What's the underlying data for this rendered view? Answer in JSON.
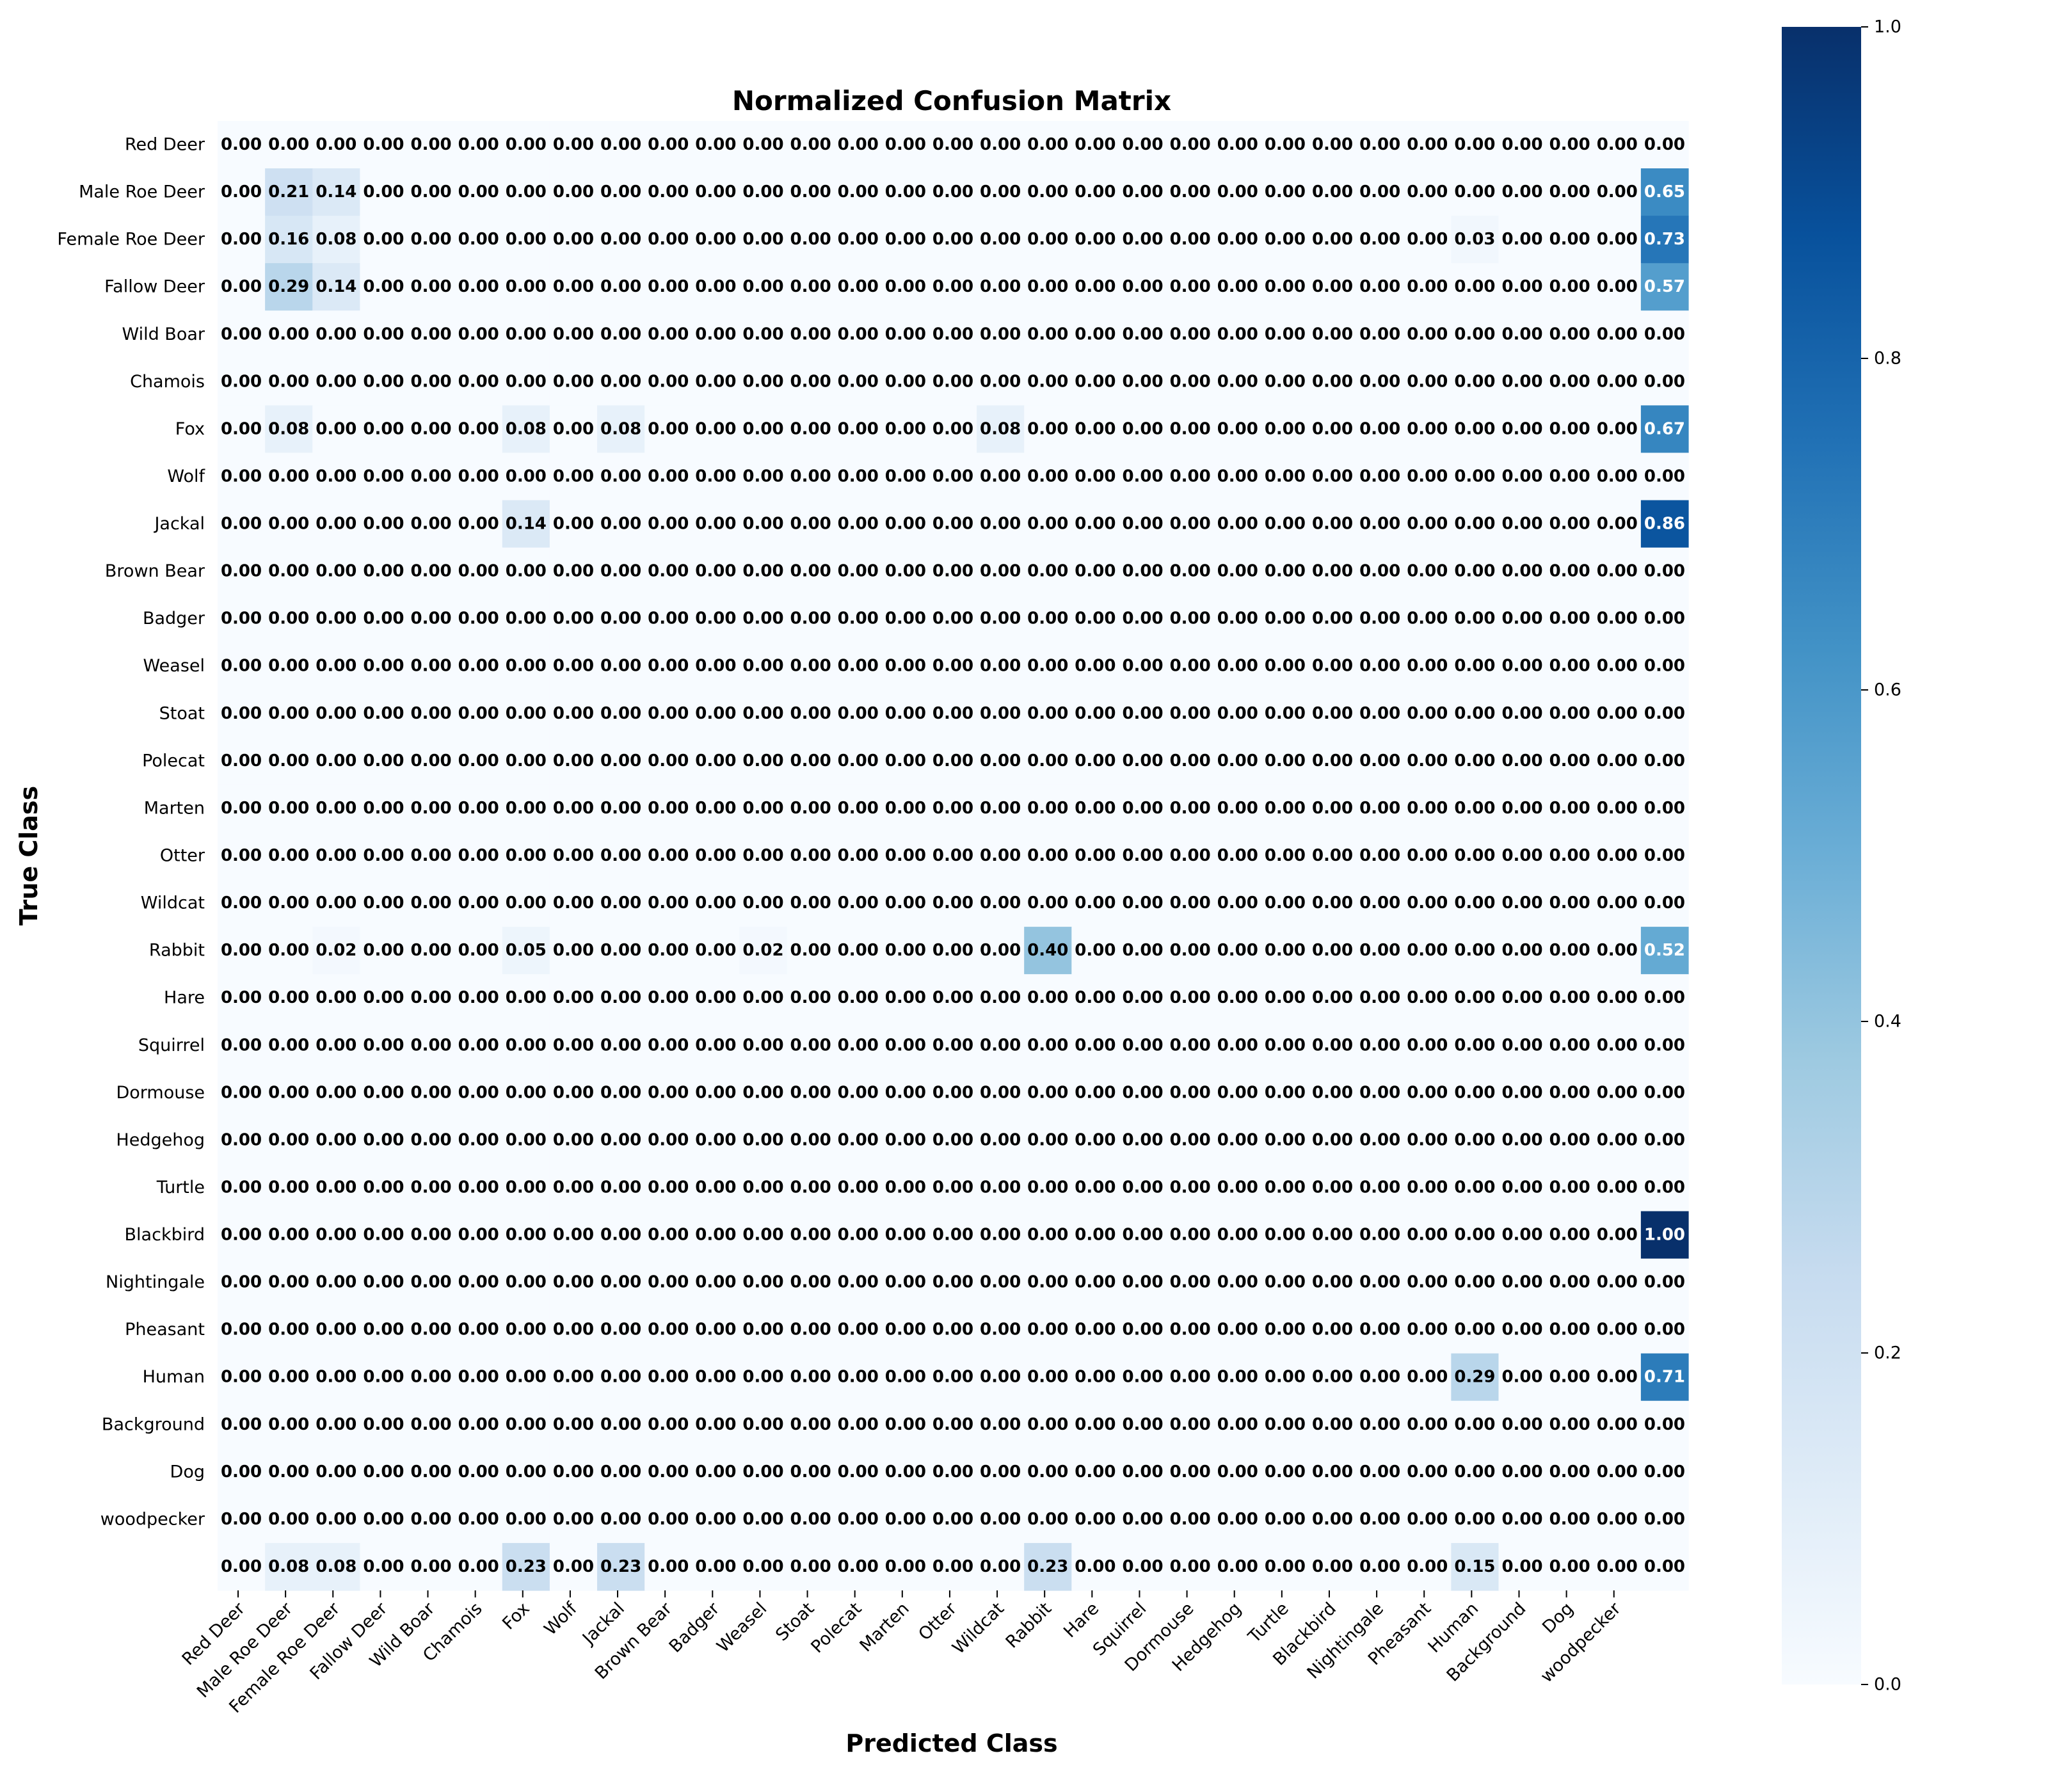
{
  "chart_data": {
    "type": "heatmap",
    "title": "Normalized Confusion Matrix",
    "xlabel": "Predicted Class",
    "ylabel": "True Class",
    "row_labels": [
      "Red Deer",
      "Male Roe Deer",
      "Female Roe Deer",
      "Fallow Deer",
      "Wild Boar",
      "Chamois",
      "Fox",
      "Wolf",
      "Jackal",
      "Brown Bear",
      "Badger",
      "Weasel",
      "Stoat",
      "Polecat",
      "Marten",
      "Otter",
      "Wildcat",
      "Rabbit",
      "Hare",
      "Squirrel",
      "Dormouse",
      "Hedgehog",
      "Turtle",
      "Blackbird",
      "Nightingale",
      "Pheasant",
      "Human",
      "Background",
      "Dog",
      "woodpecker",
      ""
    ],
    "col_labels": [
      "Red Deer",
      "Male Roe Deer",
      "Female Roe Deer",
      "Fallow Deer",
      "Wild Boar",
      "Chamois",
      "Fox",
      "Wolf",
      "Jackal",
      "Brown Bear",
      "Badger",
      "Weasel",
      "Stoat",
      "Polecat",
      "Marten",
      "Otter",
      "Wildcat",
      "Rabbit",
      "Hare",
      "Squirrel",
      "Dormouse",
      "Hedgehog",
      "Turtle",
      "Blackbird",
      "Nightingale",
      "Pheasant",
      "Human",
      "Background",
      "Dog",
      "woodpecker",
      ""
    ],
    "nonzero_cells": [
      {
        "row": 1,
        "col": 1,
        "value": 0.21
      },
      {
        "row": 1,
        "col": 2,
        "value": 0.14
      },
      {
        "row": 1,
        "col": 30,
        "value": 0.65
      },
      {
        "row": 2,
        "col": 1,
        "value": 0.16
      },
      {
        "row": 2,
        "col": 2,
        "value": 0.08
      },
      {
        "row": 2,
        "col": 26,
        "value": 0.03
      },
      {
        "row": 2,
        "col": 30,
        "value": 0.73
      },
      {
        "row": 3,
        "col": 1,
        "value": 0.29
      },
      {
        "row": 3,
        "col": 2,
        "value": 0.14
      },
      {
        "row": 3,
        "col": 30,
        "value": 0.57
      },
      {
        "row": 6,
        "col": 1,
        "value": 0.08
      },
      {
        "row": 6,
        "col": 6,
        "value": 0.08
      },
      {
        "row": 6,
        "col": 8,
        "value": 0.08
      },
      {
        "row": 6,
        "col": 16,
        "value": 0.08
      },
      {
        "row": 6,
        "col": 30,
        "value": 0.67
      },
      {
        "row": 8,
        "col": 6,
        "value": 0.14
      },
      {
        "row": 8,
        "col": 30,
        "value": 0.86
      },
      {
        "row": 17,
        "col": 2,
        "value": 0.02
      },
      {
        "row": 17,
        "col": 6,
        "value": 0.05
      },
      {
        "row": 17,
        "col": 11,
        "value": 0.02
      },
      {
        "row": 17,
        "col": 17,
        "value": 0.4
      },
      {
        "row": 17,
        "col": 30,
        "value": 0.52
      },
      {
        "row": 23,
        "col": 30,
        "value": 1.0
      },
      {
        "row": 26,
        "col": 26,
        "value": 0.29
      },
      {
        "row": 26,
        "col": 30,
        "value": 0.71
      },
      {
        "row": 30,
        "col": 1,
        "value": 0.08
      },
      {
        "row": 30,
        "col": 2,
        "value": 0.08
      },
      {
        "row": 30,
        "col": 6,
        "value": 0.23
      },
      {
        "row": 30,
        "col": 8,
        "value": 0.23
      },
      {
        "row": 30,
        "col": 17,
        "value": 0.23
      },
      {
        "row": 30,
        "col": 26,
        "value": 0.15
      }
    ],
    "default_value": 0.0,
    "value_format": "0.00",
    "colormap": "Blues",
    "colorbar": {
      "min": 0.0,
      "max": 1.0,
      "ticks": [
        "0.0",
        "0.2",
        "0.4",
        "0.6",
        "0.8",
        "1.0"
      ]
    }
  }
}
